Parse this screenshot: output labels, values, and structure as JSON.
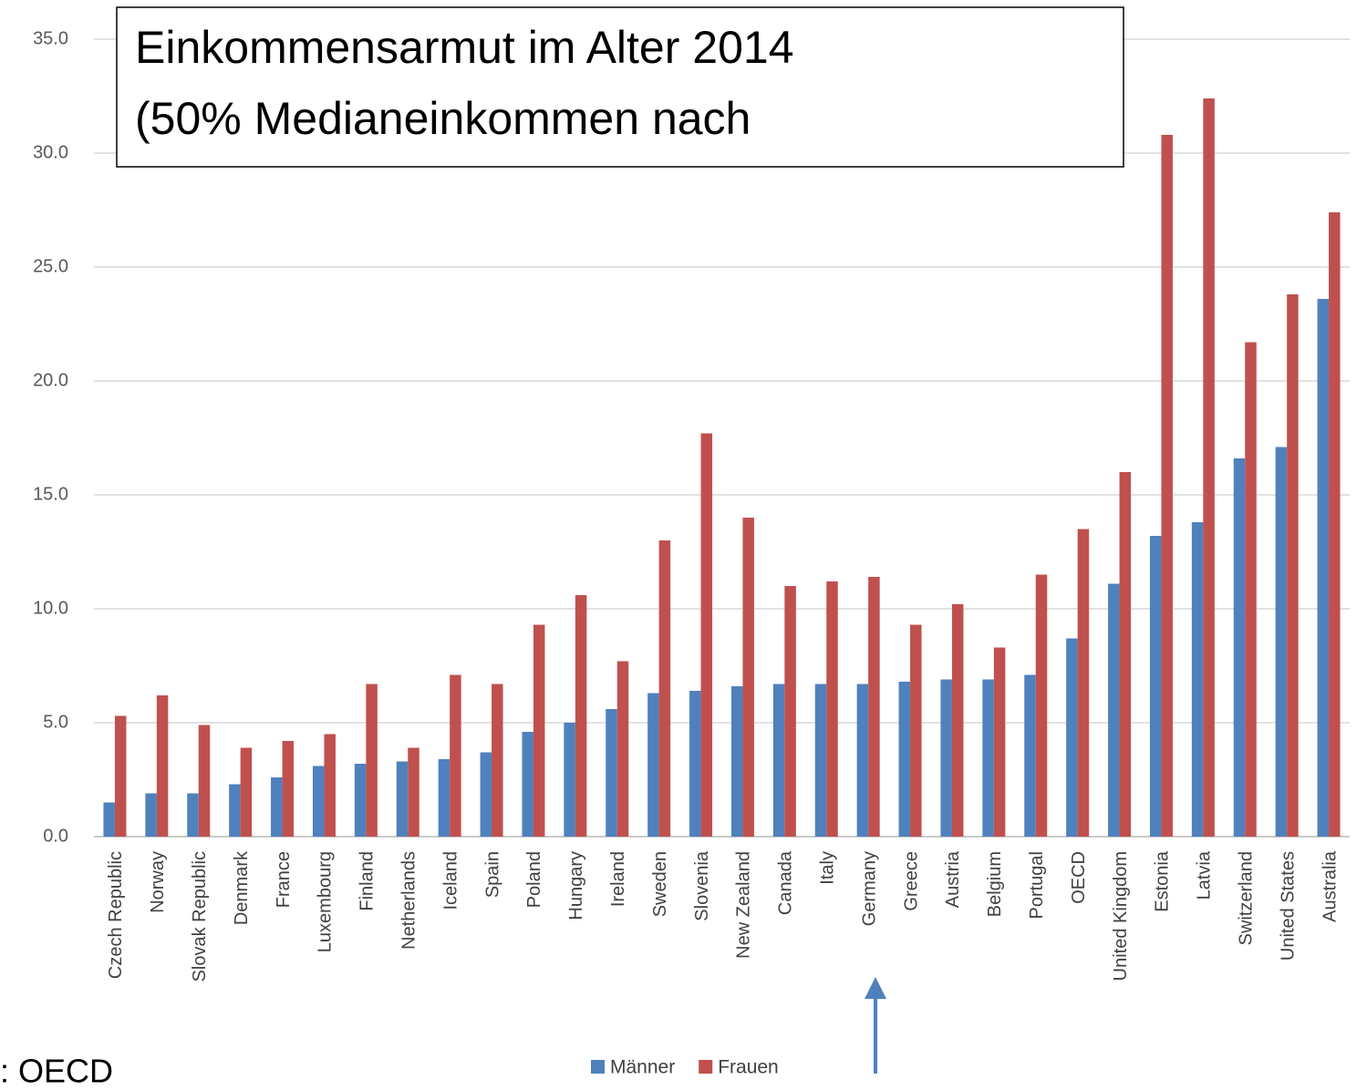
{
  "chart_data": {
    "type": "bar",
    "title": [
      "Einkommensarmut im Alter 2014",
      "(50% Medianeinkommen nach"
    ],
    "source": ": OECD",
    "categories": [
      "Czech Republic",
      "Norway",
      "Slovak Republic",
      "Denmark",
      "France",
      "Luxembourg",
      "Finland",
      "Netherlands",
      "Iceland",
      "Spain",
      "Poland",
      "Hungary",
      "Ireland",
      "Sweden",
      "Slovenia",
      "New Zealand",
      "Canada",
      "Italy",
      "Germany",
      "Greece",
      "Austria",
      "Belgium",
      "Portugal",
      "OECD",
      "United Kingdom",
      "Estonia",
      "Latvia",
      "Switzerland",
      "United States",
      "Australia"
    ],
    "series": [
      {
        "name": "Männer",
        "color": "#4f81bd",
        "values": [
          1.5,
          1.9,
          1.9,
          2.3,
          2.6,
          3.1,
          3.2,
          3.3,
          3.4,
          3.7,
          4.6,
          5.0,
          5.6,
          6.3,
          6.4,
          6.6,
          6.7,
          6.7,
          6.7,
          6.8,
          6.9,
          6.9,
          7.1,
          8.7,
          11.1,
          13.2,
          13.8,
          16.6,
          17.1,
          23.6
        ]
      },
      {
        "name": "Frauen",
        "color": "#c0504d",
        "values": [
          5.3,
          6.2,
          4.9,
          3.9,
          4.2,
          4.5,
          6.7,
          3.9,
          7.1,
          6.7,
          9.3,
          10.6,
          7.7,
          13.0,
          17.7,
          14.0,
          11.0,
          11.2,
          11.4,
          9.3,
          10.2,
          8.3,
          11.5,
          13.5,
          16.0,
          30.8,
          32.4,
          21.7,
          23.8,
          27.4
        ]
      }
    ],
    "ylim": [
      0,
      35
    ],
    "yticks": [
      {
        "value": 0,
        "label": "0.0"
      },
      {
        "value": 5,
        "label": "5.0"
      },
      {
        "value": 10,
        "label": "10.0"
      },
      {
        "value": 15,
        "label": "15.0"
      },
      {
        "value": 20,
        "label": "20.0"
      },
      {
        "value": 25,
        "label": "25.0"
      },
      {
        "value": 30,
        "label": "30.0"
      },
      {
        "value": 35,
        "label": "35.0"
      }
    ],
    "grid": true,
    "legend": "bottom"
  }
}
